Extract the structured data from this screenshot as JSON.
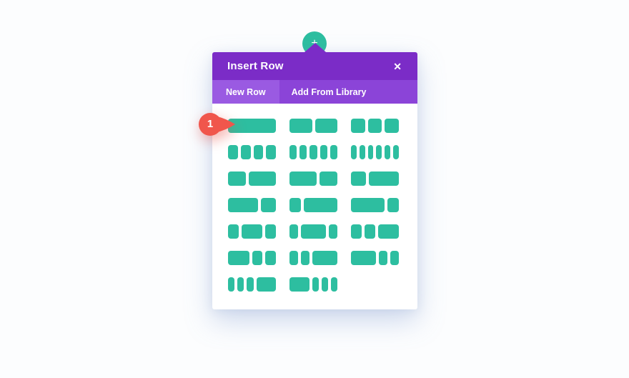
{
  "colors": {
    "page_bg": "#fcfdfe",
    "modal_bg": "#ffffff",
    "header_purple": "#7b2cc7",
    "tabbar_purple": "#8b44d8",
    "tab_active_purple": "#9a5ae2",
    "teal": "#2dbea0",
    "badge_red": "#f0564c"
  },
  "icons": {
    "plus": "+",
    "close": "✕"
  },
  "modal": {
    "title": "Insert Row",
    "tabs": [
      {
        "label": "New Row",
        "active": true
      },
      {
        "label": "Add From Library",
        "active": false
      }
    ]
  },
  "layouts": {
    "items": [
      {
        "name": "1",
        "cols": [
          1
        ]
      },
      {
        "name": "1/2 1/2",
        "cols": [
          1,
          1
        ]
      },
      {
        "name": "1/3 1/3 1/3",
        "cols": [
          1,
          1,
          1
        ]
      },
      {
        "name": "1/4 1/4 1/4 1/4",
        "cols": [
          1,
          1,
          1,
          1
        ]
      },
      {
        "name": "1/5 1/5 1/5 1/5 1/5",
        "cols": [
          1,
          1,
          1,
          1,
          1
        ]
      },
      {
        "name": "1/6 1/6 1/6 1/6 1/6 1/6",
        "cols": [
          1,
          1,
          1,
          1,
          1,
          1
        ]
      },
      {
        "name": "2/5 3/5",
        "cols": [
          2,
          3
        ]
      },
      {
        "name": "3/5 2/5",
        "cols": [
          3,
          2
        ]
      },
      {
        "name": "1/3 2/3",
        "cols": [
          1,
          2
        ]
      },
      {
        "name": "2/3 1/3",
        "cols": [
          2,
          1
        ]
      },
      {
        "name": "1/4 3/4",
        "cols": [
          1,
          3
        ]
      },
      {
        "name": "3/4 1/4",
        "cols": [
          3,
          1
        ]
      },
      {
        "name": "1/4 1/2 1/4",
        "cols": [
          1,
          2,
          1
        ]
      },
      {
        "name": "1/5 3/5 1/5",
        "cols": [
          1,
          3,
          1
        ]
      },
      {
        "name": "1/4 1/4 1/2",
        "cols": [
          1,
          1,
          2
        ]
      },
      {
        "name": "1/2 1/4 1/4",
        "cols": [
          2,
          1,
          1
        ]
      },
      {
        "name": "1/5 1/5 3/5",
        "cols": [
          1,
          1,
          3
        ]
      },
      {
        "name": "3/5 1/5 1/5",
        "cols": [
          3,
          1,
          1
        ]
      },
      {
        "name": "1/6 1/6 1/6 1/2",
        "cols": [
          1,
          1,
          1,
          3
        ]
      },
      {
        "name": "1/2 1/6 1/6 1/6",
        "cols": [
          3,
          1,
          1,
          1
        ]
      }
    ]
  },
  "badge": {
    "number": "1"
  }
}
